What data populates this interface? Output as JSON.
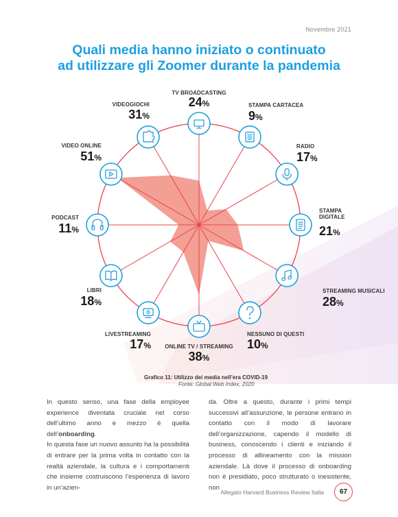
{
  "header": {
    "date": "Novembre 2021"
  },
  "title": {
    "line1": "Quali media hanno iniziato o continuato",
    "line2": "ad utilizzare gli Zoomer durante la pandemia"
  },
  "colors": {
    "accent_blue": "#1c9fe0",
    "spoke_red": "#e8424f",
    "fill_salmon": "#f08a7c",
    "icon_blue": "#2a9fdc"
  },
  "chart_data": {
    "type": "radar",
    "title": "Quali media hanno iniziato o continuato ad utilizzare gli Zoomer durante la pandemia",
    "unit": "%",
    "categories": [
      "TV BROADCASTING",
      "STAMPA CARTACEA",
      "RADIO",
      "STAMPA DIGITALE",
      "STREAMING MUSICALI",
      "NESSUNO DI QUESTI",
      "ONLINE TV / STREAMING",
      "LIVESTREAMING",
      "LIBRI",
      "PODCAST",
      "VIDEO ONLINE",
      "VIDEOGIOCHI"
    ],
    "values": [
      24,
      9,
      17,
      21,
      28,
      10,
      38,
      17,
      18,
      11,
      51,
      31
    ],
    "pct_sign": "%",
    "icons": [
      "tv-broadcasting-icon",
      "newspaper-icon",
      "microphone-icon",
      "digital-document-icon",
      "music-note-icon",
      "question-mark-icon",
      "online-tv-icon",
      "livestreaming-icon",
      "book-icon",
      "headphones-icon",
      "video-player-icon",
      "puzzle-icon"
    ]
  },
  "caption": {
    "title": "Grafico 11: Utilizzo dei media nell’era COVID-19",
    "source": "Fonte: Global Web Index, 2020"
  },
  "body_text": {
    "left": [
      {
        "pre": "In questo senso, una fase della employee experience diventata cruciale nel corso dell’ultimo anno e mezzo è quella dell’",
        "bold": "onboarding",
        "post": "."
      },
      {
        "pre": "In questa fase un nuovo assunto ha la possibilità di entrare per la prima volta in contatto con la realtà aziendale, la cultura e i comportamenti che insieme costruiscono l’esperienza di lavoro in un’azien-",
        "bold": "",
        "post": ""
      }
    ],
    "right": [
      {
        "pre": "da. Oltre a questo, durante i primi tempi successivi all’assunzione, le persone entrano in contatto con il modo di lavorare dell’organizzazione, capendo il modello di business, conoscendo i clienti e iniziando il processo di allineamento con la mission aziendale. Là dove il processo di onboarding non è presidiato, poco strutturato o inesistente, non",
        "bold": "",
        "post": ""
      }
    ]
  },
  "footer": {
    "source": "Allegato Harvard Business Review Italia",
    "page": "67"
  }
}
